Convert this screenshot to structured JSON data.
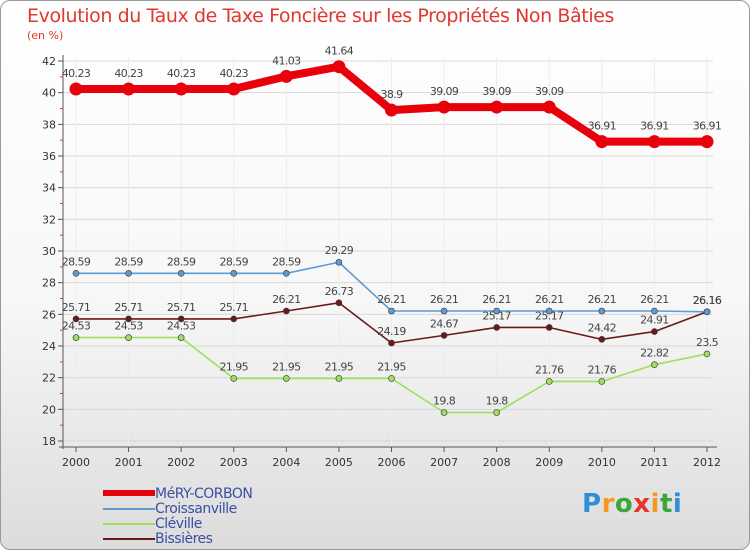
{
  "chart_data": {
    "type": "line",
    "title": "Evolution du Taux de Taxe Foncière sur les Propriétés Non Bâties",
    "ylabel": "(en %)",
    "xlabel": "",
    "categories": [
      "2000",
      "2001",
      "2002",
      "2003",
      "2004",
      "2005",
      "2006",
      "2007",
      "2008",
      "2009",
      "2010",
      "2011",
      "2012"
    ],
    "ylim": [
      18,
      42
    ],
    "yticks": [
      18,
      20,
      22,
      24,
      26,
      28,
      30,
      32,
      34,
      36,
      38,
      40,
      42
    ],
    "legend_position": "bottom-left",
    "series": [
      {
        "name": "MéRY-CORBON",
        "color": "#e8000b",
        "values": [
          40.23,
          40.23,
          40.23,
          40.23,
          41.03,
          41.64,
          38.9,
          39.09,
          39.09,
          39.09,
          36.91,
          36.91,
          36.91
        ],
        "labels": [
          "40.23",
          "40.23",
          "40.23",
          "40.23",
          "41.03",
          "41.64",
          "38.9",
          "39.09",
          "39.09",
          "39.09",
          "36.91",
          "36.91",
          "36.91"
        ]
      },
      {
        "name": "Croissanville",
        "color": "#5d9bd3",
        "values": [
          28.59,
          28.59,
          28.59,
          28.59,
          28.59,
          29.29,
          26.21,
          26.21,
          26.21,
          26.21,
          26.21,
          26.21,
          26.16
        ],
        "labels": [
          "28.59",
          "28.59",
          "28.59",
          "28.59",
          "28.59",
          "29.29",
          "26.21",
          "26.21",
          "26.21",
          "26.21",
          "26.21",
          "26.21",
          "26.16"
        ]
      },
      {
        "name": "Cléville",
        "color": "#9ee05a",
        "values": [
          24.53,
          24.53,
          24.53,
          21.95,
          21.95,
          21.95,
          21.95,
          19.8,
          19.8,
          21.76,
          21.76,
          22.82,
          23.5
        ],
        "labels": [
          "24.53",
          "24.53",
          "24.53",
          "21.95",
          "21.95",
          "21.95",
          "21.95",
          "19.8",
          "19.8",
          "21.76",
          "21.76",
          "22.82",
          "23.5"
        ]
      },
      {
        "name": "Bissières",
        "color": "#6b1a1a",
        "values": [
          25.71,
          25.71,
          25.71,
          25.71,
          26.21,
          26.73,
          24.19,
          24.67,
          25.17,
          25.17,
          24.42,
          24.91,
          26.16
        ],
        "labels": [
          "25.71",
          "25.71",
          "25.71",
          "25.71",
          "26.21",
          "26.73",
          "24.19",
          "24.67",
          "25.17",
          "25.17",
          "24.42",
          "24.91",
          "26.16"
        ]
      }
    ]
  },
  "logo": {
    "letters": [
      "P",
      "r",
      "o",
      "x",
      "i",
      "t",
      "i"
    ],
    "colors": [
      "#2e8fd6",
      "#f39a1e",
      "#3aa63c",
      "#e8342a",
      "#f39a1e",
      "#3aa63c",
      "#2e8fd6"
    ]
  }
}
